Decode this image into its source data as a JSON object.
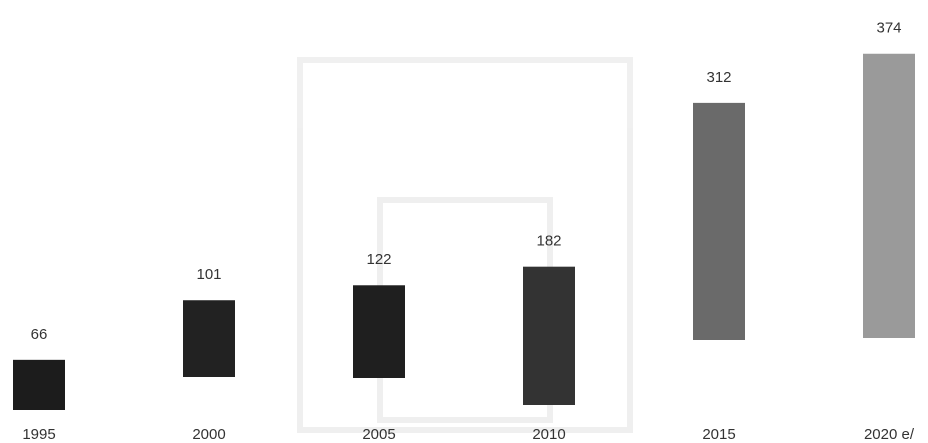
{
  "chart_data": {
    "type": "bar",
    "categories": [
      "1995",
      "2000",
      "2005",
      "2010",
      "2015",
      "2020 e/"
    ],
    "values": [
      66,
      101,
      122,
      182,
      312,
      374
    ],
    "colors": [
      "#1c1c1c",
      "#222222",
      "#1f1f1f",
      "#333333",
      "#6a6a6a",
      "#9a9a9a"
    ]
  }
}
